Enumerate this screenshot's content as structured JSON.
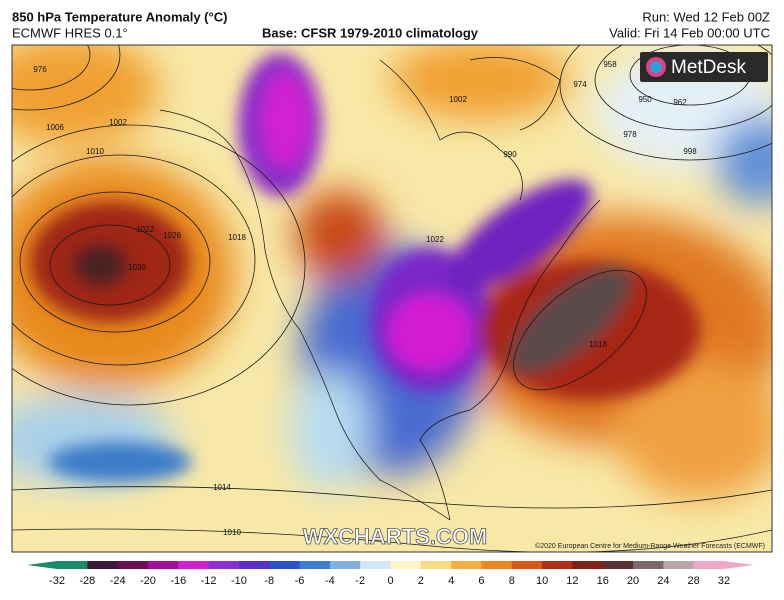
{
  "header": {
    "title": "850 hPa Temperature Anomaly (°C)",
    "model": "ECMWF HRES 0.1°",
    "base": "Base: CFSR 1979-2010 climatology",
    "run": "Run: Wed 12 Feb 00Z",
    "valid": "Valid: Fri 14 Feb 00:00 UTC"
  },
  "logo": "MetDesk",
  "watermark": "WXCHARTS.COM",
  "copyright": "©2020 European Centre for Medium-Range Weather Forecasts (ECMWF)",
  "isobar_labels": [
    "976",
    "1006",
    "1002",
    "1010",
    "1022",
    "1026",
    "1030",
    "1018",
    "1014",
    "1010",
    "1002",
    "990",
    "974",
    "958",
    "950",
    "962",
    "978",
    "998",
    "1018",
    "1022"
  ],
  "colorbar": {
    "ticks": [
      -32,
      -28,
      -24,
      -20,
      -16,
      -12,
      -10,
      -8,
      -6,
      -4,
      -2,
      0,
      2,
      4,
      6,
      8,
      10,
      12,
      16,
      20,
      24,
      28,
      32
    ],
    "colors": [
      "#1a8a6a",
      "#3a1a3a",
      "#6a1050",
      "#a0109a",
      "#d020d0",
      "#8a30d0",
      "#5a30c8",
      "#3050c8",
      "#3c7cd0",
      "#80b0e0",
      "#cfe6f4",
      "#fff6c8",
      "#f8dc80",
      "#f4b040",
      "#ec8820",
      "#d85818",
      "#b03018",
      "#802018",
      "#5a3030",
      "#7a6a6a",
      "#b8a8a8",
      "#f0a8c8"
    ]
  }
}
